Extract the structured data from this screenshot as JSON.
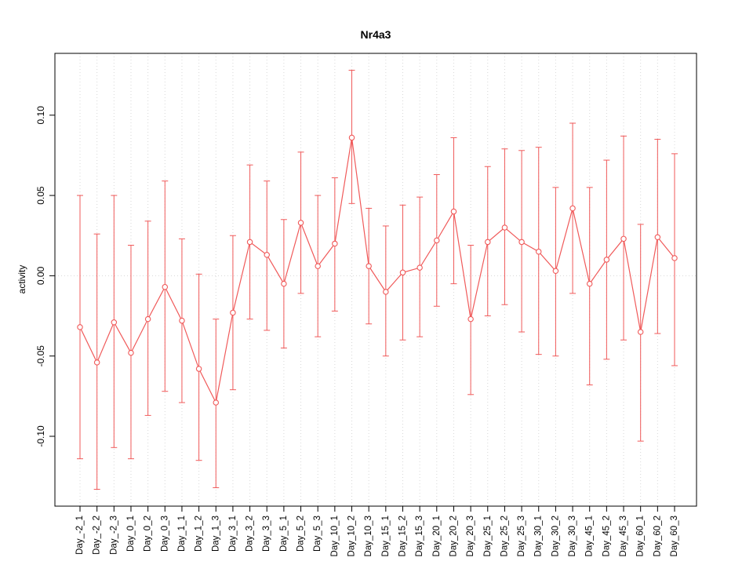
{
  "chart_data": {
    "type": "line",
    "title": "Nr4a3",
    "xlabel": "",
    "ylabel": "activity",
    "legend": "none",
    "grid": "vertical dotted gridlines at each category plus dotted zero line",
    "marker": "open-circle",
    "error_bars": true,
    "ylim": [
      -0.1435,
      0.1385
    ],
    "yticks": [
      -0.1,
      -0.05,
      0.0,
      0.05,
      0.1
    ],
    "ytick_labels": [
      "-0.10",
      "-0.05",
      "0.00",
      "0.05",
      "0.10"
    ],
    "categories": [
      "Day_-2_1",
      "Day_-2_2",
      "Day_-2_3",
      "Day_0_1",
      "Day_0_2",
      "Day_0_3",
      "Day_1_1",
      "Day_1_2",
      "Day_1_3",
      "Day_3_1",
      "Day_3_2",
      "Day_3_3",
      "Day_5_1",
      "Day_5_2",
      "Day_5_3",
      "Day_10_1",
      "Day_10_2",
      "Day_10_3",
      "Day_15_1",
      "Day_15_2",
      "Day_15_3",
      "Day_20_1",
      "Day_20_2",
      "Day_20_3",
      "Day_25_1",
      "Day_25_2",
      "Day_25_3",
      "Day_30_1",
      "Day_30_2",
      "Day_30_3",
      "Day_45_1",
      "Day_45_2",
      "Day_45_3",
      "Day_60_1",
      "Day_60_2",
      "Day_60_3"
    ],
    "series": [
      {
        "name": "activity",
        "values": [
          -0.032,
          -0.054,
          -0.029,
          -0.048,
          -0.027,
          -0.007,
          -0.028,
          -0.058,
          -0.079,
          -0.023,
          0.021,
          0.013,
          -0.005,
          0.033,
          0.006,
          0.02,
          0.086,
          0.006,
          -0.01,
          0.002,
          0.005,
          0.022,
          0.04,
          -0.027,
          0.021,
          0.03,
          0.021,
          0.015,
          0.003,
          0.042,
          -0.005,
          0.01,
          0.023,
          -0.035,
          0.024,
          0.011
        ],
        "upper": [
          0.05,
          0.026,
          0.05,
          0.019,
          0.034,
          0.059,
          0.023,
          0.001,
          -0.027,
          0.025,
          0.069,
          0.059,
          0.035,
          0.077,
          0.05,
          0.061,
          0.128,
          0.042,
          0.031,
          0.044,
          0.049,
          0.063,
          0.086,
          0.019,
          0.068,
          0.079,
          0.078,
          0.08,
          0.055,
          0.095,
          0.055,
          0.072,
          0.087,
          0.032,
          0.085,
          0.076
        ],
        "lower": [
          -0.114,
          -0.133,
          -0.107,
          -0.114,
          -0.087,
          -0.072,
          -0.079,
          -0.115,
          -0.132,
          -0.071,
          -0.027,
          -0.034,
          -0.045,
          -0.011,
          -0.038,
          -0.022,
          0.045,
          -0.03,
          -0.05,
          -0.04,
          -0.038,
          -0.019,
          -0.005,
          -0.074,
          -0.025,
          -0.018,
          -0.035,
          -0.049,
          -0.05,
          -0.011,
          -0.068,
          -0.052,
          -0.04,
          -0.103,
          -0.036,
          -0.056
        ]
      }
    ],
    "colors": {
      "series": "#f05a5a",
      "grid": "#d8d8d8",
      "axis": "#000000",
      "background": "#ffffff"
    }
  }
}
